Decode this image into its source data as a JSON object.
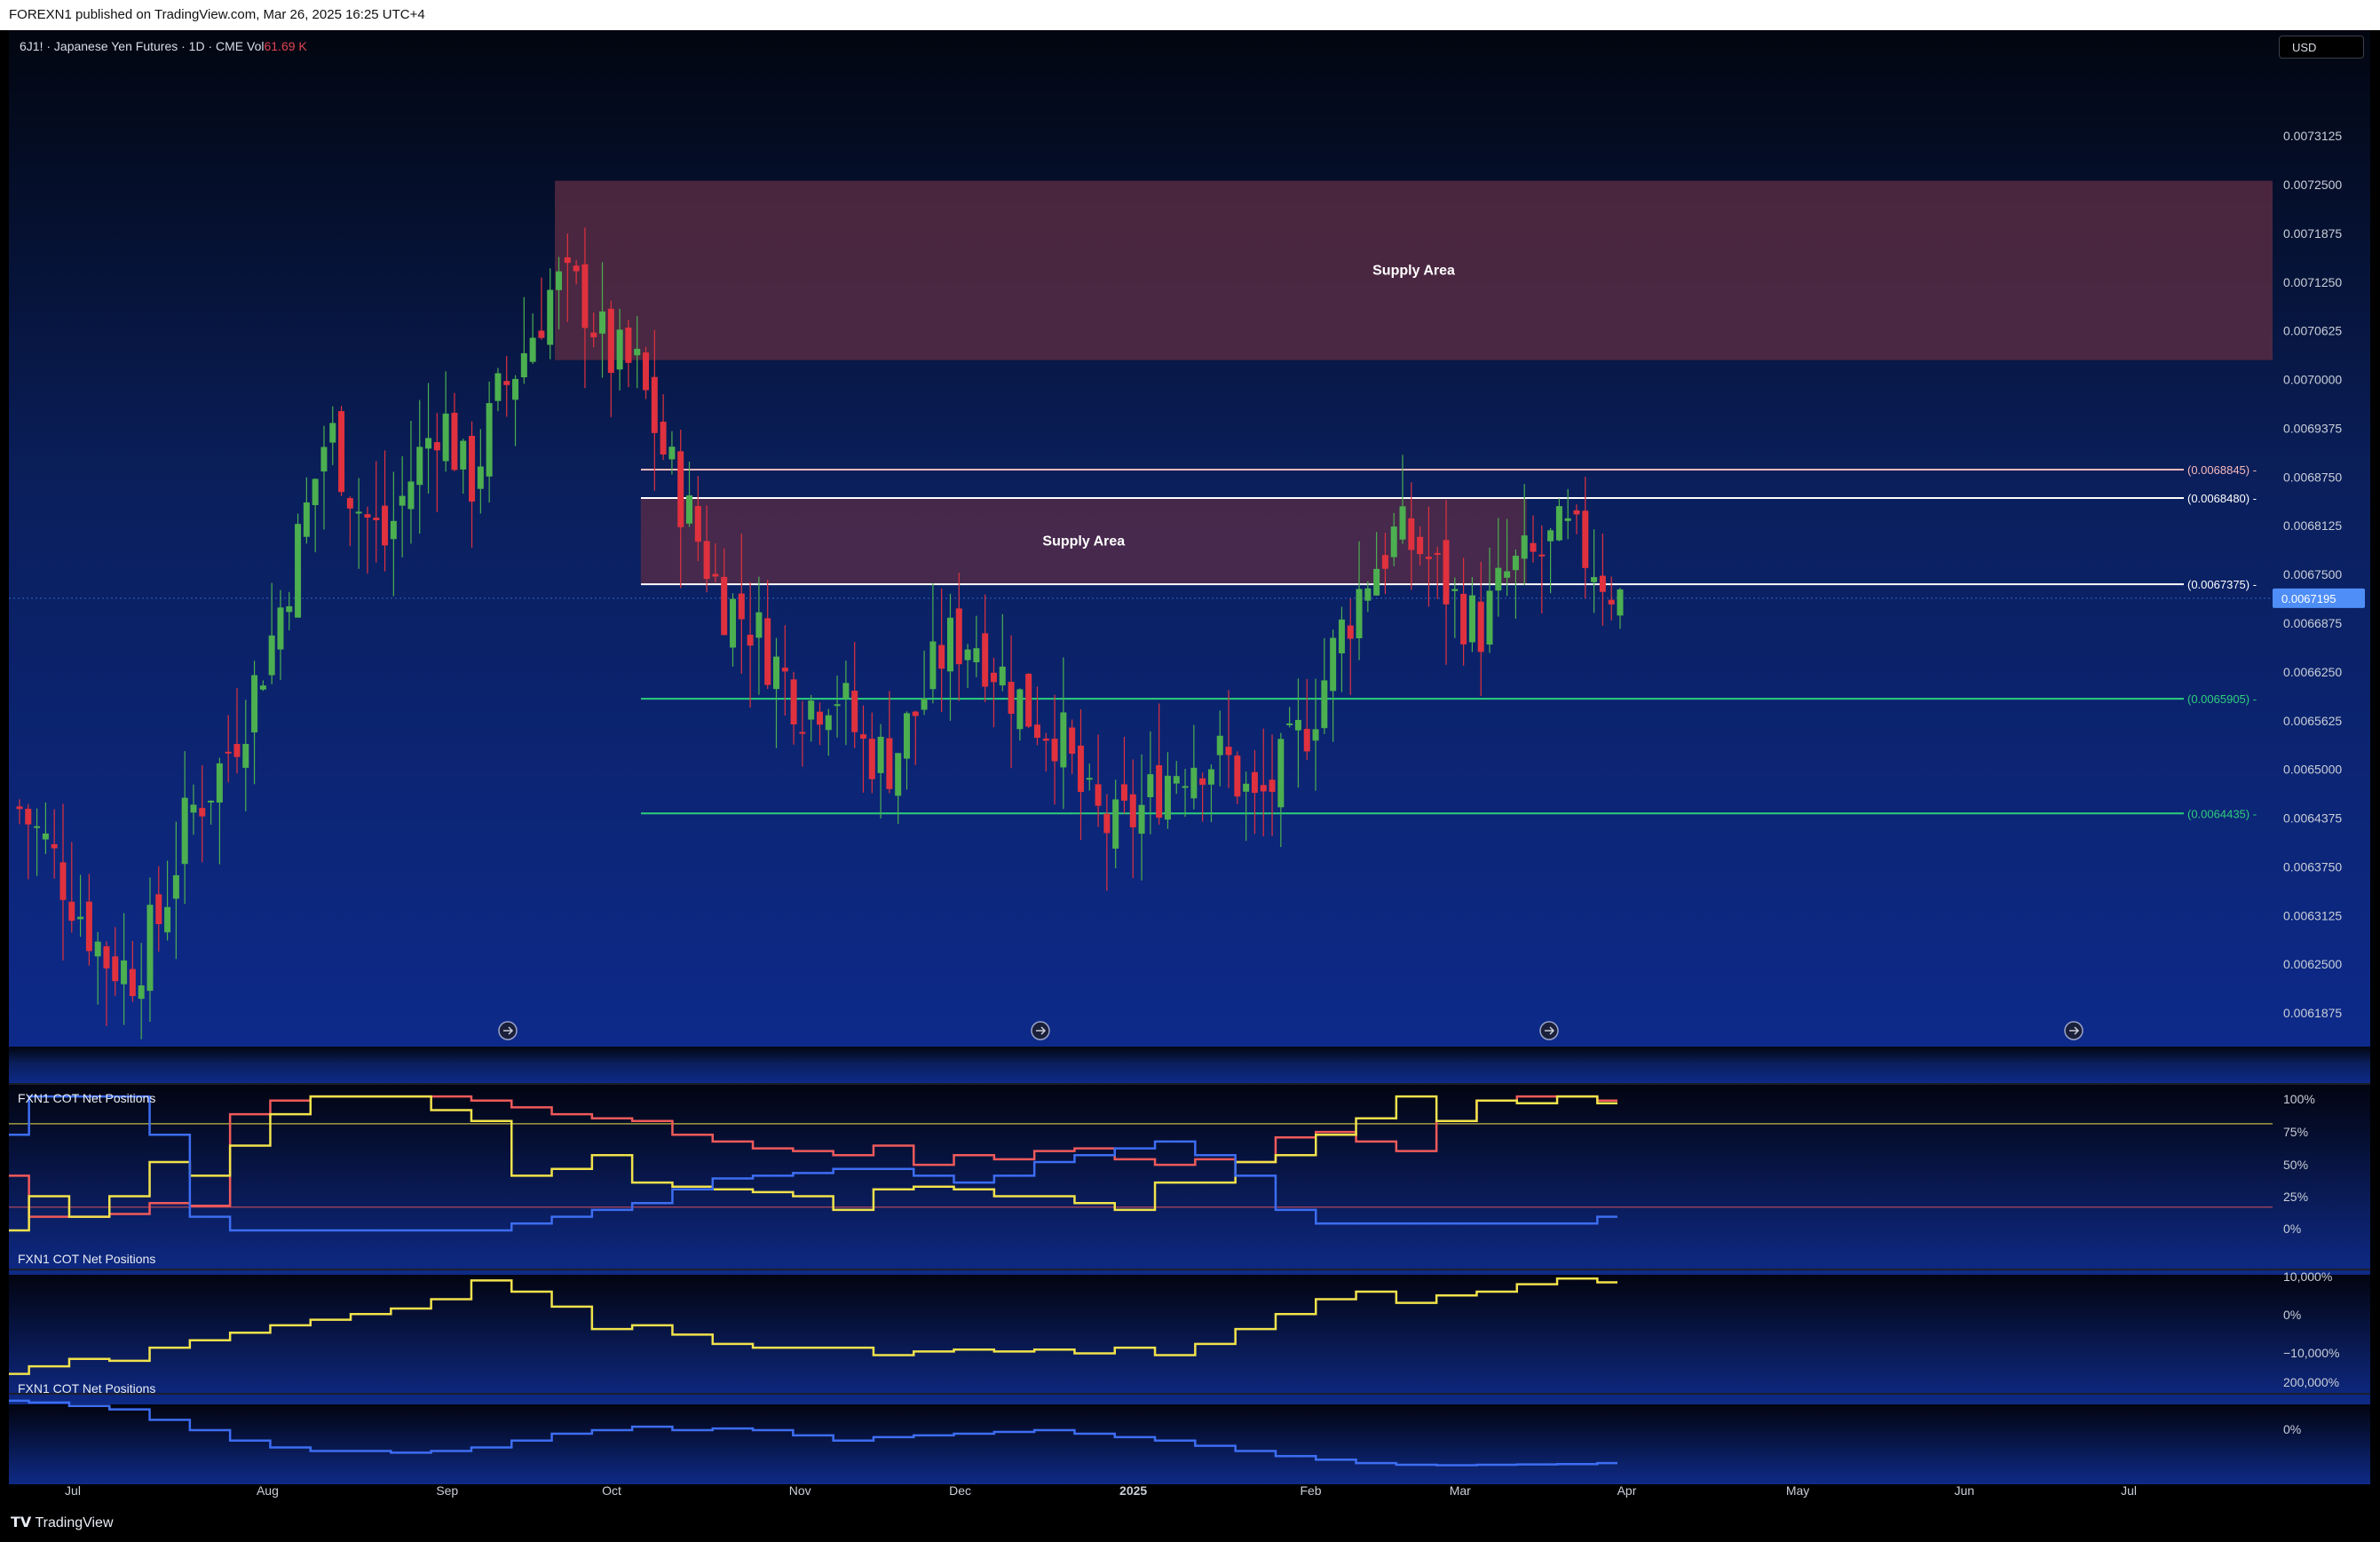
{
  "header": {
    "publish_text": "FOREXN1 published on TradingView.com, Mar 26, 2025 16:25 UTC+4"
  },
  "symbol": {
    "name": "6J1! · Japanese Yen Futures · 1D · CME",
    "vol_label": "Vol",
    "vol_value": "61.69 K"
  },
  "currency_button": "USD",
  "footer": {
    "brand": "TradingView"
  },
  "colors": {
    "up": "#4caf50",
    "down": "#e0313e",
    "supply": "#5e2d44",
    "cot_red": "#f05a5a",
    "cot_yellow": "#f1e24c",
    "cot_blue": "#3d6df2",
    "support": "#2ecf7c",
    "resistance_top": "#f7b9b9",
    "resistance": "#ffffff",
    "price_tag": "#4f8ef7"
  },
  "chart_data": {
    "type": "candlestick",
    "x_months": [
      "Jul",
      "Aug",
      "Sep",
      "Oct",
      "Nov",
      "Dec",
      "2025",
      "Feb",
      "Mar",
      "Apr",
      "May",
      "Jun",
      "Jul"
    ],
    "x_month_frac": [
      0.0,
      0.09,
      0.173,
      0.249,
      0.336,
      0.41,
      0.49,
      0.572,
      0.641,
      0.718,
      0.797,
      0.874,
      0.95
    ],
    "y_axis_ticks": [
      "0.0073125",
      "0.0072500",
      "0.0071875",
      "0.0071250",
      "0.0070625",
      "0.0070000",
      "0.0069375",
      "0.0068750",
      "0.0068125",
      "0.0067500",
      "0.0066875",
      "0.0066250",
      "0.0065625",
      "0.0065000",
      "0.0064375",
      "0.0063750",
      "0.0063125",
      "0.0062500",
      "0.0061875"
    ],
    "ylim": [
      0.00615,
      0.00734
    ],
    "last_price": "0.0067195",
    "close_path": [
      0.00645,
      0.0064,
      0.00633,
      0.00626,
      0.00624,
      0.00631,
      0.00644,
      0.00649,
      0.00657,
      0.00667,
      0.0068,
      0.00694,
      0.00684,
      0.00679,
      0.00688,
      0.00696,
      0.00686,
      0.00697,
      0.00704,
      0.00712,
      0.00711,
      0.00703,
      0.00701,
      0.0069,
      0.00681,
      0.00672,
      0.00669,
      0.00663,
      0.00658,
      0.00661,
      0.00653,
      0.00651,
      0.00658,
      0.00666,
      0.00667,
      0.00662,
      0.00657,
      0.00655,
      0.00645,
      0.00642,
      0.00645,
      0.0065,
      0.00652,
      0.00651,
      0.00645,
      0.0065,
      0.00657,
      0.00667,
      0.00675,
      0.0068,
      0.00678,
      0.00672,
      0.00668,
      0.00675,
      0.00677,
      0.0068,
      0.00677,
      0.00672
    ],
    "annotations": [
      {
        "label": "Supply Area",
        "price_top": 0.007255,
        "price_bottom": 0.007025,
        "x_start": 0.24,
        "x_end": 1.0
      },
      {
        "label": "Supply Area",
        "price_top": 0.006848,
        "price_bottom": 0.006738,
        "x_start": 0.278,
        "x_end": 0.67
      }
    ],
    "levels": [
      {
        "label": "(0.0068845)",
        "price": 0.0068845,
        "kind": "resistance_top"
      },
      {
        "label": "(0.0068480)",
        "price": 0.006848,
        "kind": "resistance"
      },
      {
        "label": "(0.0067375)",
        "price": 0.0067375,
        "kind": "resistance"
      },
      {
        "label": "(0.0065905)",
        "price": 0.0065905,
        "kind": "support"
      },
      {
        "label": "(0.0064435)",
        "price": 0.0064435,
        "kind": "support"
      }
    ],
    "panes": [
      {
        "label": "FXN1 COT Net Positions",
        "ticks": [
          "100%",
          "75%",
          "50%",
          "25%",
          "0%"
        ],
        "ylim": [
          0,
          100
        ],
        "series": [
          {
            "color": "red",
            "values": [
              40,
              10,
              10,
              12,
              20,
              18,
              85,
              95,
              98,
              98,
              98,
              98,
              95,
              90,
              85,
              82,
              80,
              70,
              65,
              60,
              58,
              55,
              62,
              48,
              55,
              52,
              58,
              60,
              52,
              48,
              52,
              50,
              68,
              72,
              65,
              58,
              80,
              95,
              98,
              98,
              95
            ]
          },
          {
            "color": "yellow",
            "values": [
              0,
              25,
              10,
              25,
              50,
              40,
              62,
              85,
              98,
              98,
              98,
              88,
              80,
              40,
              45,
              55,
              35,
              32,
              30,
              28,
              25,
              15,
              30,
              32,
              30,
              25,
              25,
              20,
              15,
              35,
              35,
              50,
              55,
              70,
              82,
              98,
              80,
              95,
              93,
              98,
              93
            ]
          },
          {
            "color": "blue",
            "values": [
              70,
              98,
              98,
              98,
              70,
              10,
              0,
              0,
              0,
              0,
              0,
              0,
              0,
              5,
              10,
              15,
              20,
              30,
              38,
              40,
              42,
              45,
              45,
              40,
              35,
              40,
              50,
              55,
              60,
              65,
              55,
              40,
              15,
              5,
              5,
              5,
              5,
              5,
              5,
              5,
              10
            ]
          }
        ],
        "hlines": [
          {
            "value": 78,
            "color": "yellow"
          },
          {
            "value": 17,
            "color": "red"
          }
        ]
      },
      {
        "label": "FXN1 COT Net Positions",
        "ticks": [
          "10,000%",
          "0%",
          "−10,000%"
        ],
        "ylim": [
          -12000,
          17000
        ],
        "series": [
          {
            "color": "yellow",
            "values": [
              -10000,
              -8000,
              -6000,
              -6500,
              -3000,
              -1000,
              1000,
              3000,
              4500,
              6000,
              7500,
              10000,
              15000,
              12000,
              8000,
              2000,
              3000,
              500,
              -2000,
              -3000,
              -3000,
              -3000,
              -5000,
              -4000,
              -3500,
              -4000,
              -3500,
              -4500,
              -3000,
              -5000,
              -2000,
              2000,
              6000,
              10000,
              12000,
              9000,
              11000,
              12000,
              14000,
              15500,
              14500
            ]
          }
        ]
      },
      {
        "label": "FXN1 COT Net Positions",
        "ticks": [
          "200,000%",
          "0%"
        ],
        "ylim": [
          -150000,
          250000
        ],
        "series": [
          {
            "color": "blue",
            "values": [
              230000,
              220000,
              200000,
              180000,
              120000,
              60000,
              0,
              -40000,
              -60000,
              -60000,
              -70000,
              -60000,
              -40000,
              0,
              40000,
              60000,
              80000,
              60000,
              70000,
              60000,
              30000,
              0,
              20000,
              30000,
              40000,
              50000,
              60000,
              40000,
              20000,
              0,
              -30000,
              -60000,
              -90000,
              -110000,
              -130000,
              -140000,
              -142000,
              -140000,
              -138000,
              -136000,
              -130000
            ]
          }
        ]
      }
    ]
  }
}
